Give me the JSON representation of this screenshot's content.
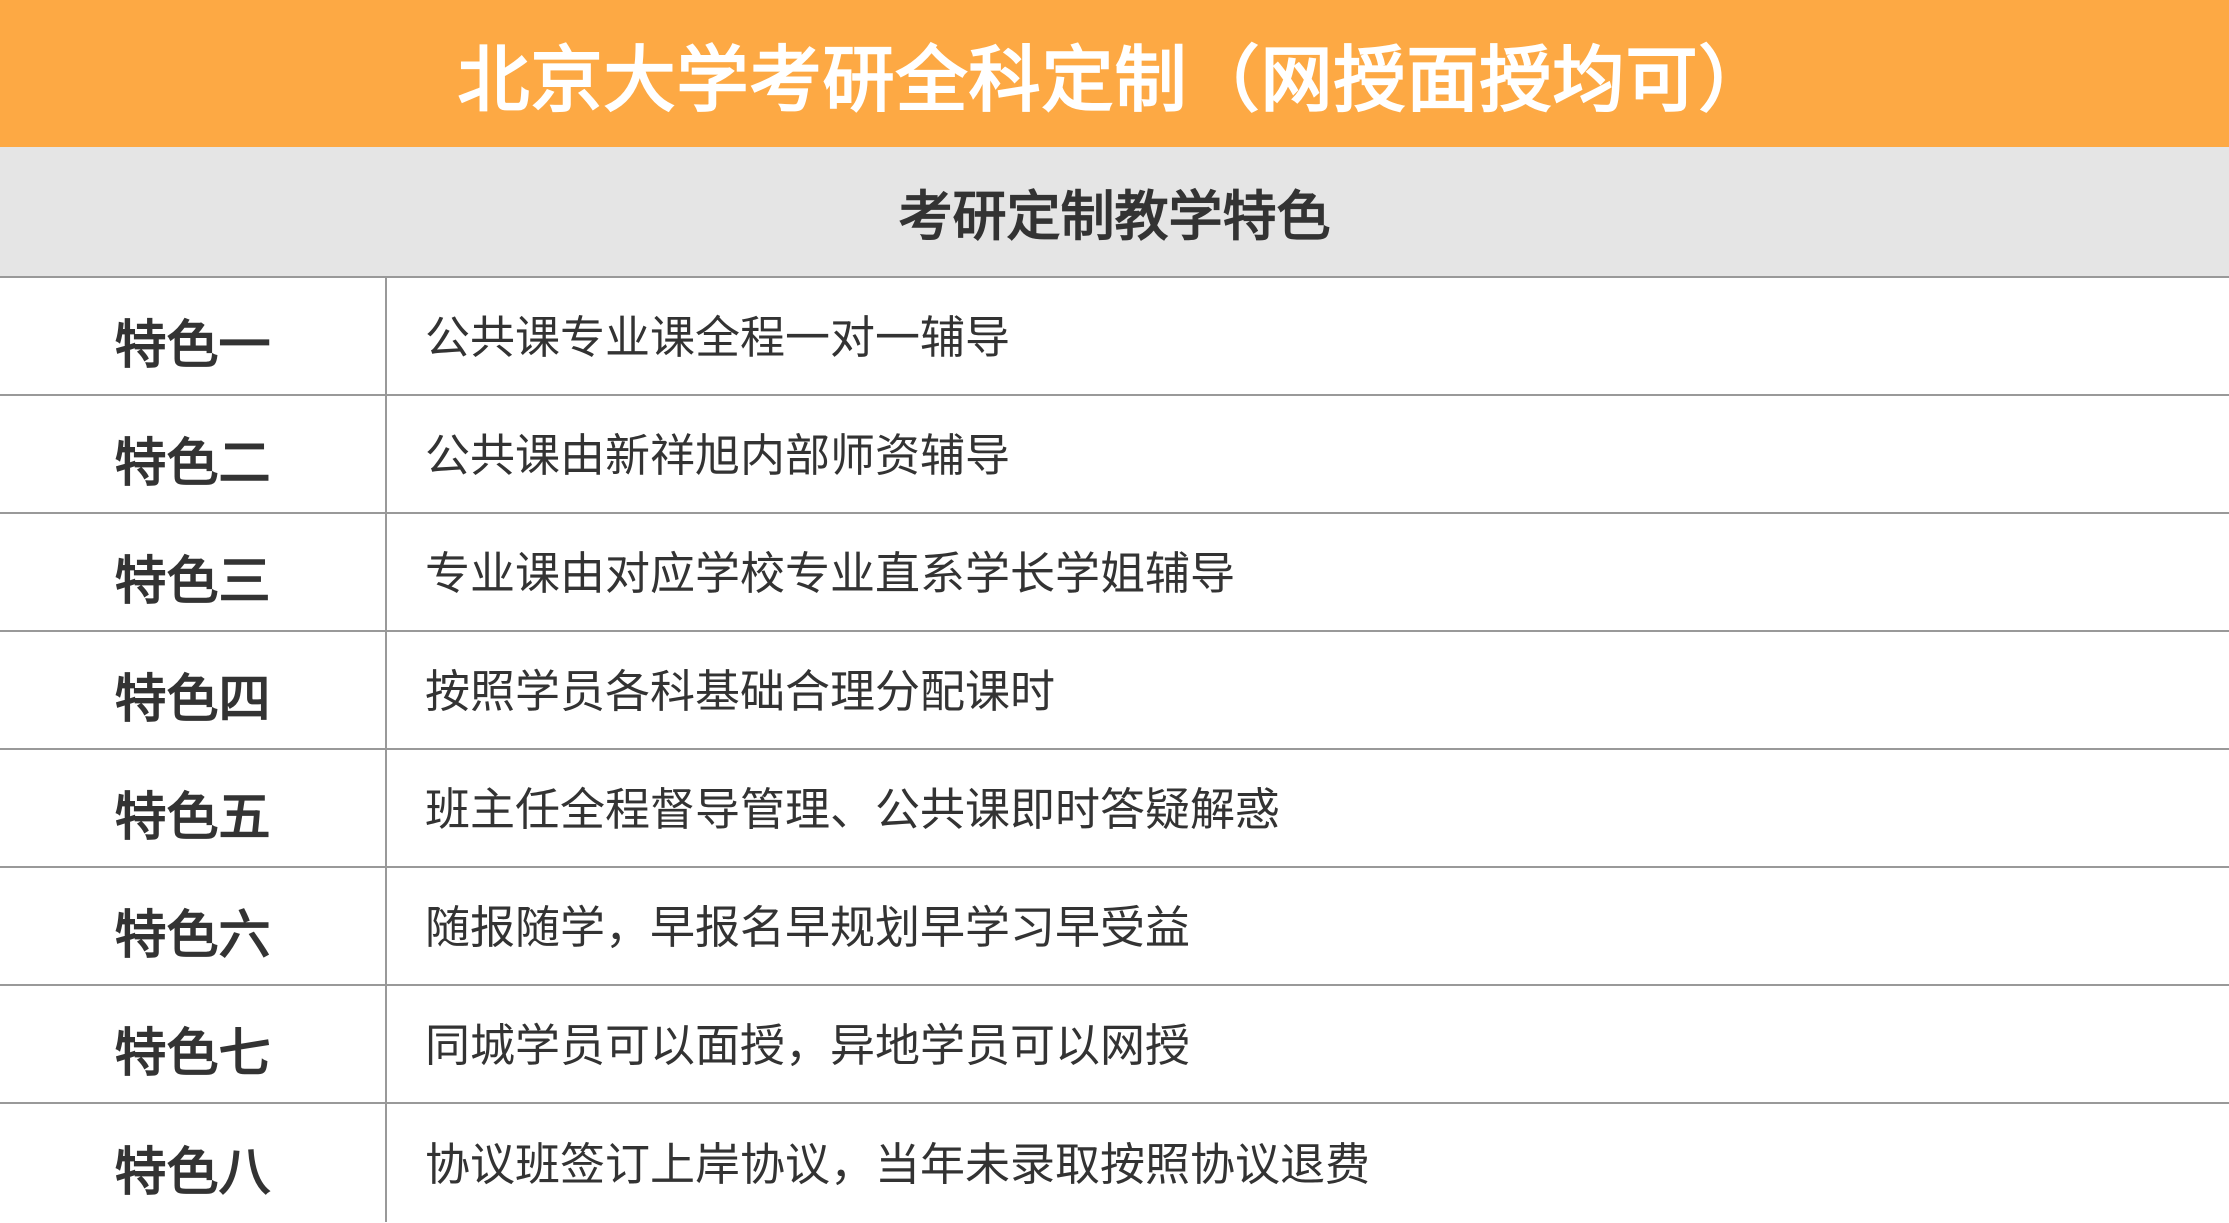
{
  "title": "北京大学考研全科定制（网授面授均可）",
  "subtitle": "考研定制教学特色",
  "colors": {
    "header": "#FDA944",
    "subheader": "#E5E5E5",
    "text": "#333333"
  },
  "rows": [
    {
      "label": "特色一",
      "text": "公共课专业课全程一对一辅导"
    },
    {
      "label": "特色二",
      "text": "公共课由新祥旭内部师资辅导"
    },
    {
      "label": "特色三",
      "text": "专业课由对应学校专业直系学长学姐辅导"
    },
    {
      "label": "特色四",
      "text": "按照学员各科基础合理分配课时"
    },
    {
      "label": "特色五",
      "text": "班主任全程督导管理、公共课即时答疑解惑"
    },
    {
      "label": "特色六",
      "text": "随报随学，早报名早规划早学习早受益"
    },
    {
      "label": "特色七",
      "text": "同城学员可以面授，异地学员可以网授"
    },
    {
      "label": "特色八",
      "text": "协议班签订上岸协议，当年未录取按照协议退费"
    }
  ]
}
